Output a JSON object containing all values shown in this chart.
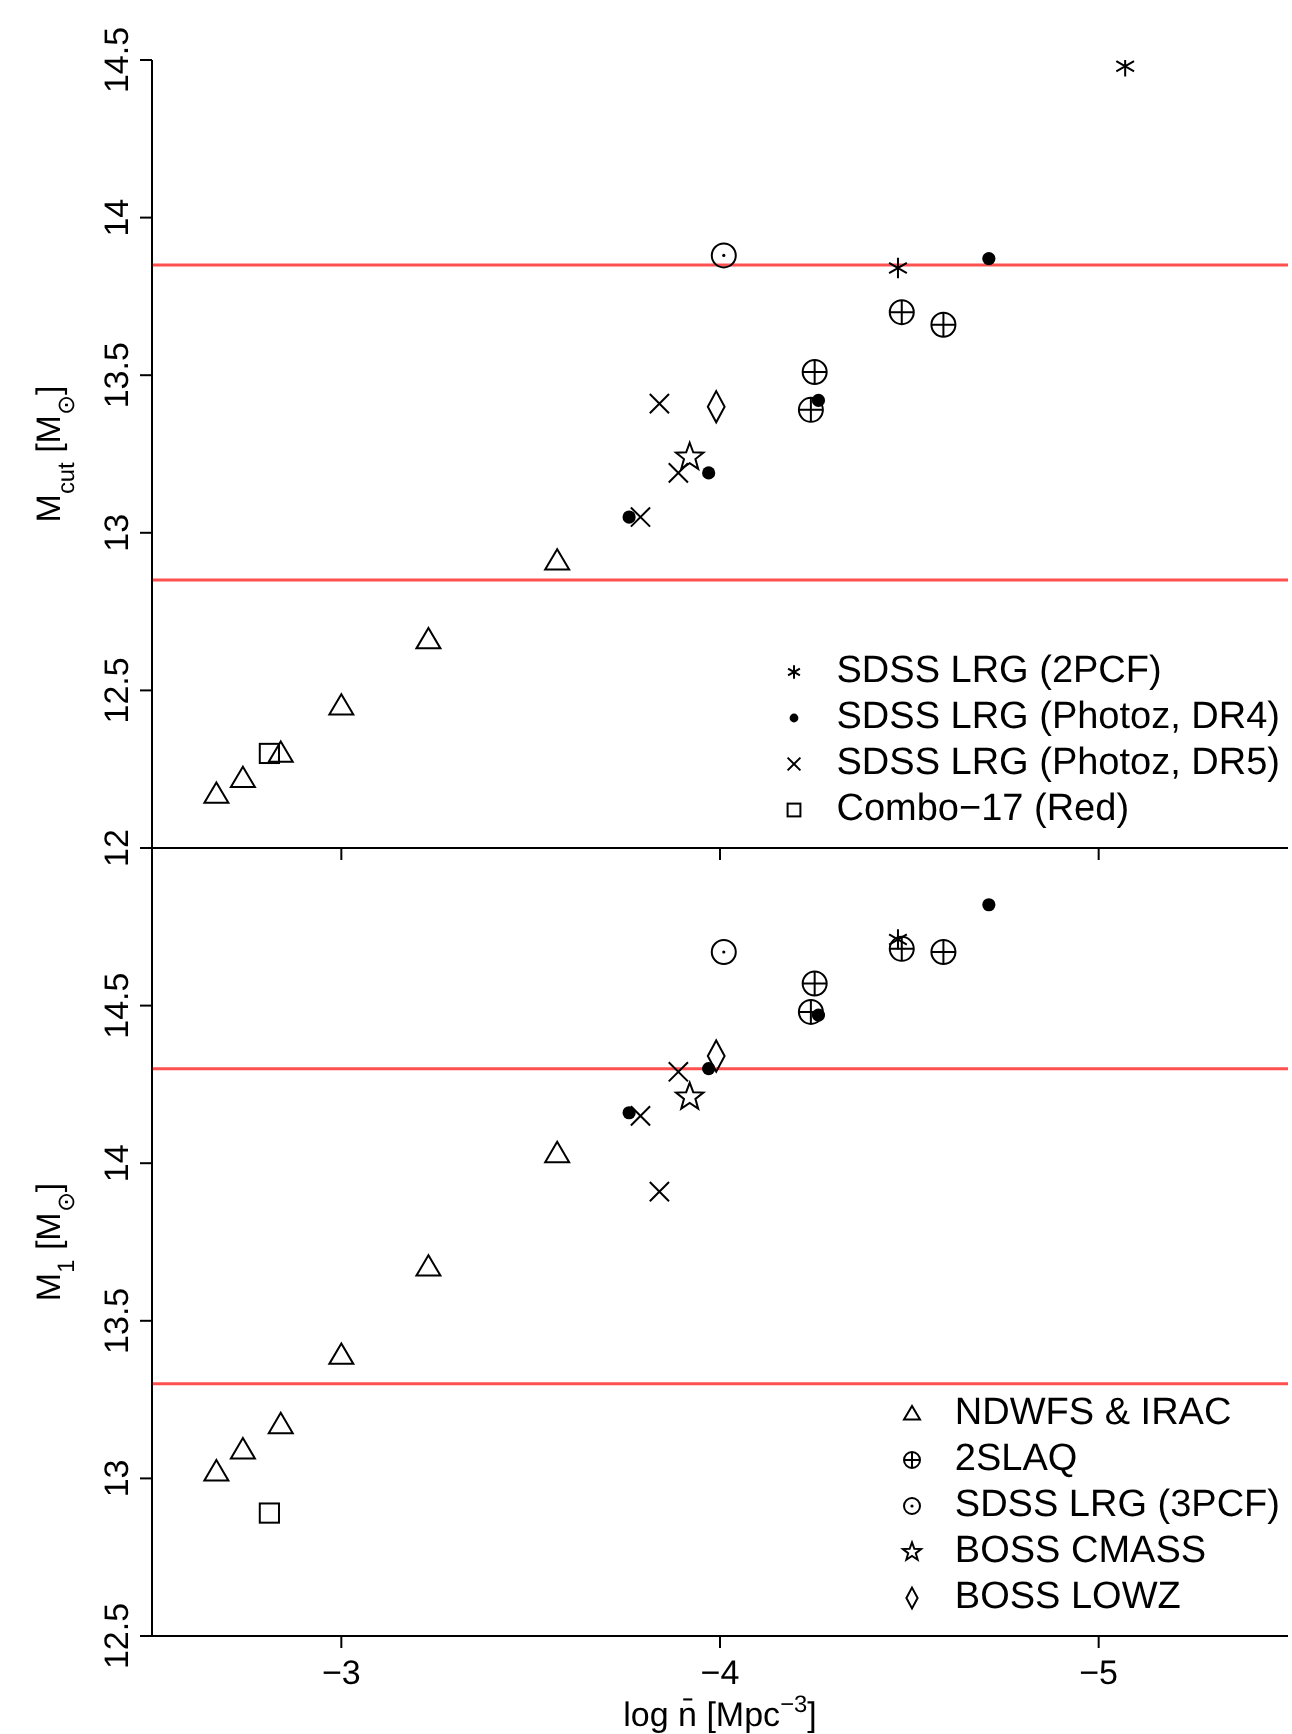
{
  "chart_data": [
    {
      "type": "scatter",
      "ylabel": "M$_{cut}$ [M$_{⊙}$]",
      "xlim": [
        -2.5,
        -5.5
      ],
      "xticks": [
        -3,
        -4,
        -5
      ],
      "ylim": [
        12,
        14.5
      ],
      "yticks": [
        12,
        12.5,
        13,
        13.5,
        14,
        14.5
      ],
      "tick_labels": "y",
      "legend": "bottom right",
      "ref_lines": [
        {
          "axis": "y",
          "value": 13.85,
          "color": "#ff5050"
        },
        {
          "axis": "y",
          "value": 12.85,
          "color": "#ff5050"
        }
      ],
      "series": [
        {
          "name": "SDSS LRG (2PCF)",
          "color": "#000000",
          "marker": "cross",
          "x": [
            -5.07,
            -4.47
          ],
          "values": [
            14.48,
            13.84
          ]
        },
        {
          "name": "SDSS LRG (Photoz, DR4)",
          "color": "#000000",
          "marker": "dot",
          "x": [
            -4.71,
            -4.26,
            -3.97,
            -3.76
          ],
          "values": [
            13.87,
            13.42,
            13.19,
            13.05
          ]
        },
        {
          "name": "SDSS LRG (Photoz, DR5)",
          "color": "#000000",
          "marker": "x",
          "x": [
            -3.84,
            -3.89,
            -3.79
          ],
          "values": [
            13.41,
            13.19,
            13.05
          ]
        },
        {
          "name": "Combo−17 (Red)",
          "color": "#000000",
          "marker": "square",
          "x": [
            -2.81
          ],
          "values": [
            12.3
          ]
        },
        {
          "color": "#000000",
          "marker": "triangle",
          "x": [
            -3.57,
            -3.23,
            -3.0,
            -2.84,
            -2.74,
            -2.67
          ],
          "values": [
            12.91,
            12.66,
            12.45,
            12.3,
            12.22,
            12.17
          ]
        },
        {
          "color": "#000000",
          "marker": "circle-plus",
          "x": [
            -4.48,
            -4.59,
            -4.25,
            -4.24
          ],
          "values": [
            13.7,
            13.66,
            13.51,
            13.39
          ]
        },
        {
          "color": "#000000",
          "marker": "circle",
          "x": [
            -4.01
          ],
          "values": [
            13.88
          ]
        },
        {
          "color": "#000000",
          "marker": "star",
          "x": [
            -3.92
          ],
          "values": [
            13.24
          ]
        },
        {
          "color": "#000000",
          "marker": "diamond",
          "x": [
            -3.99
          ],
          "values": [
            13.4
          ]
        }
      ]
    },
    {
      "type": "scatter",
      "ylabel": "M$_{1}$ [M$_{⊙}$]",
      "xlabel": "log n̄ [Mpc$^{−3}$]",
      "xlim": [
        -2.5,
        -5.5
      ],
      "xticks": [
        -3,
        -4,
        -5
      ],
      "ylim": [
        12.5,
        15
      ],
      "yticks": [
        12.5,
        13,
        13.5,
        14,
        14.5,
        {
          "value": 15,
          "label": null
        }
      ],
      "legend": "bottom right",
      "ref_lines": [
        {
          "axis": "y",
          "value": 14.3,
          "color": "#ff5050"
        },
        {
          "axis": "y",
          "value": 13.3,
          "color": "#ff5050"
        }
      ],
      "series": [
        {
          "name": "NDWFS & IRAC",
          "color": "#000000",
          "marker": "triangle",
          "x": [
            -3.57,
            -3.23,
            -3.0,
            -2.84,
            -2.74,
            -2.67
          ],
          "values": [
            14.03,
            13.67,
            13.39,
            13.17,
            13.09,
            13.02
          ]
        },
        {
          "name": "2SLAQ",
          "color": "#000000",
          "marker": "circle-plus",
          "x": [
            -4.48,
            -4.59,
            -4.25,
            -4.24
          ],
          "values": [
            14.68,
            14.67,
            14.57,
            14.48
          ]
        },
        {
          "name": "SDSS LRG (3PCF)",
          "color": "#000000",
          "marker": "circle",
          "x": [
            -4.01
          ],
          "values": [
            14.67
          ]
        },
        {
          "name": "BOSS CMASS",
          "color": "#000000",
          "marker": "star",
          "x": [
            -3.92
          ],
          "values": [
            14.21
          ]
        },
        {
          "name": "BOSS LOWZ",
          "color": "#000000",
          "marker": "diamond",
          "x": [
            -3.99
          ],
          "values": [
            14.34
          ]
        },
        {
          "color": "#000000",
          "marker": "cross",
          "x": [
            -4.47
          ],
          "values": [
            14.71
          ]
        },
        {
          "color": "#000000",
          "marker": "dot",
          "x": [
            -4.71,
            -4.26,
            -3.97,
            -3.76
          ],
          "values": [
            14.82,
            14.47,
            14.3,
            14.16
          ]
        },
        {
          "color": "#000000",
          "marker": "x",
          "x": [
            -3.89,
            -3.79,
            -3.84
          ],
          "values": [
            14.29,
            14.15,
            13.91
          ]
        },
        {
          "color": "#000000",
          "marker": "square",
          "x": [
            -2.81
          ],
          "values": [
            12.89
          ]
        }
      ]
    }
  ]
}
